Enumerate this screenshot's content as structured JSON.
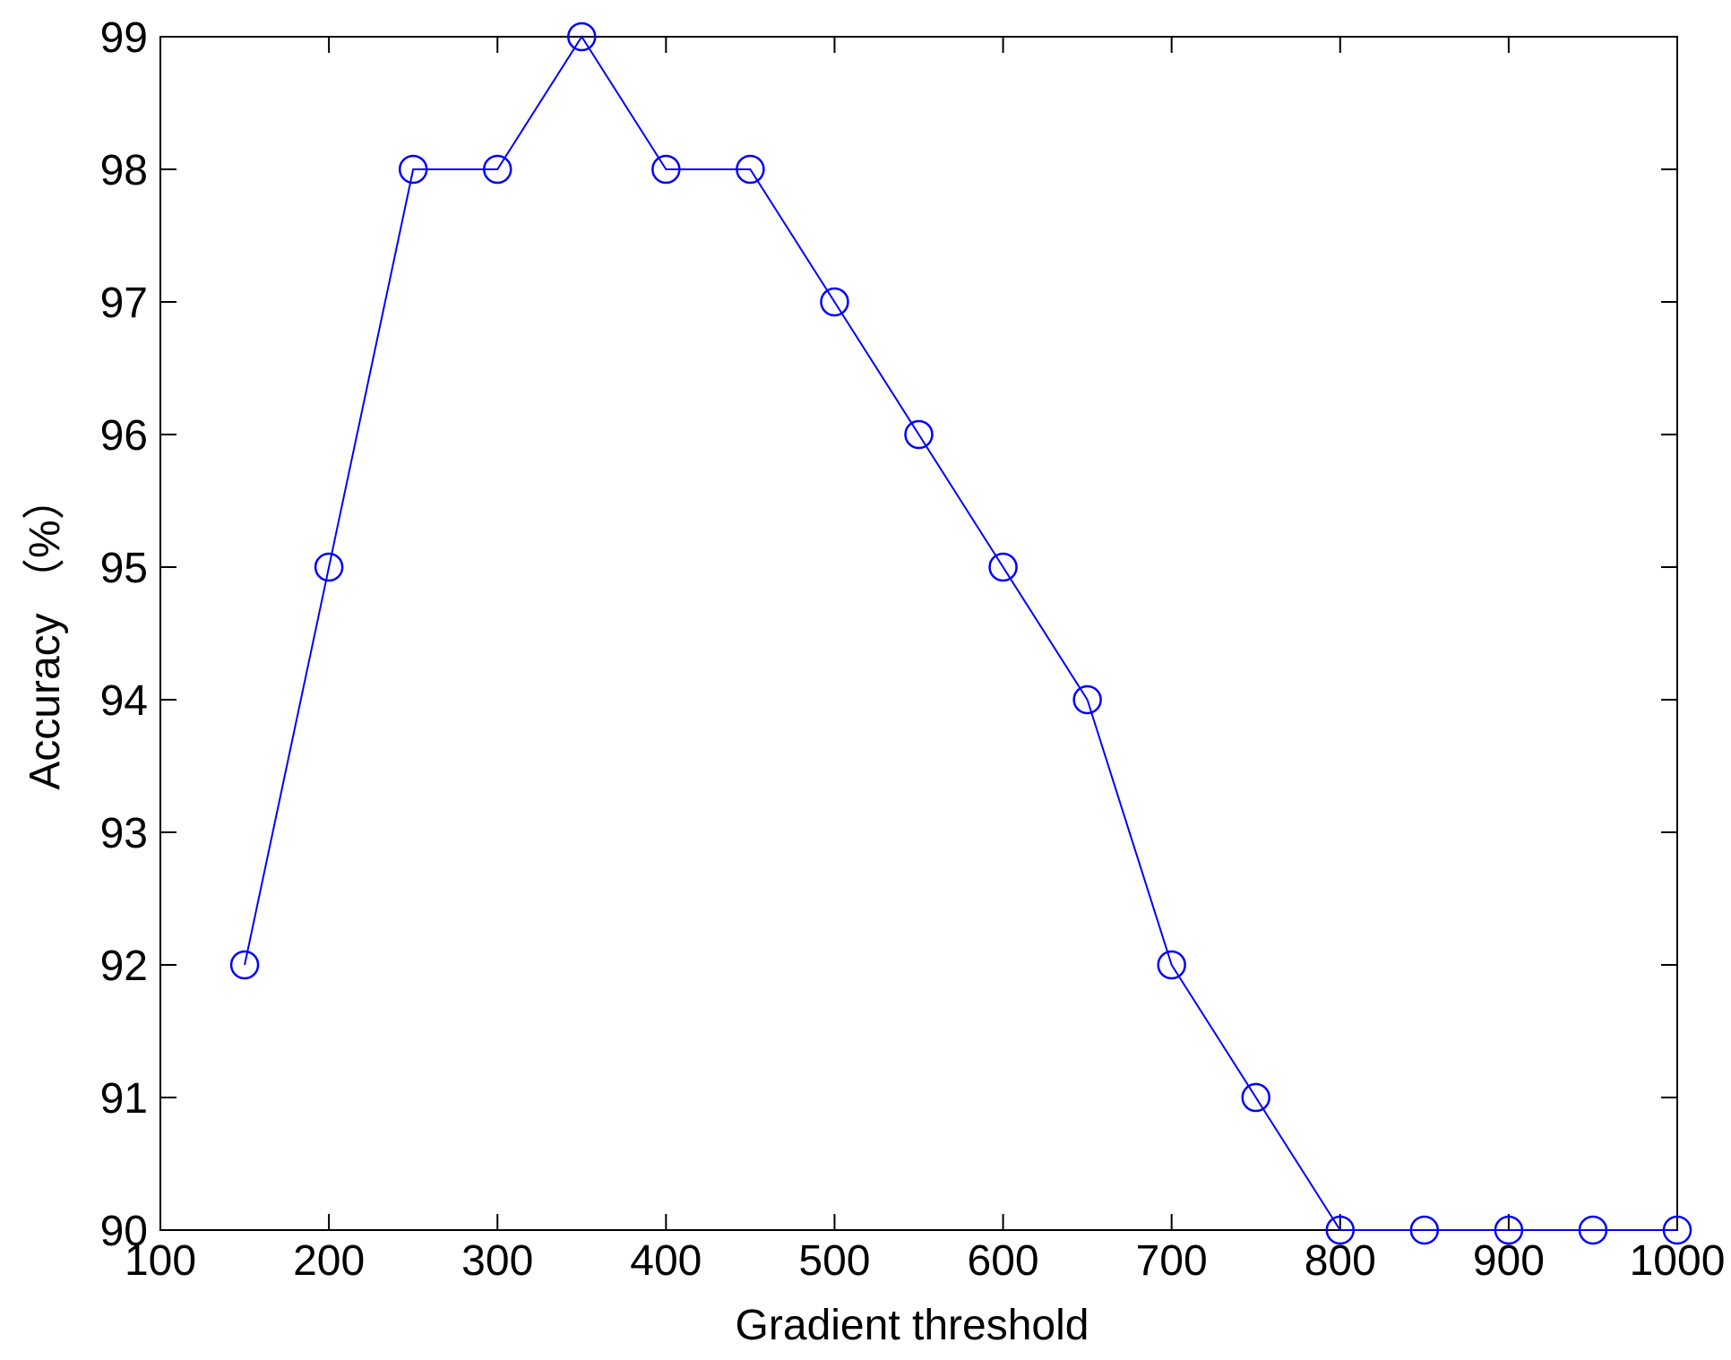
{
  "chart_data": {
    "type": "line",
    "xlabel": "Gradient threshold",
    "ylabel": "Accuracy （%）",
    "x": [
      150,
      200,
      250,
      300,
      350,
      400,
      450,
      500,
      550,
      600,
      650,
      700,
      750,
      800,
      850,
      900,
      950,
      1000
    ],
    "values": [
      92,
      95,
      98,
      98,
      99,
      98,
      98,
      97,
      96,
      95,
      94,
      92,
      91,
      90,
      90,
      90,
      90,
      90
    ],
    "color": "#0000ff",
    "marker": "circle",
    "xlim": [
      100,
      1000
    ],
    "xticks": [
      100,
      200,
      300,
      400,
      500,
      600,
      700,
      800,
      900,
      1000
    ],
    "ylim": [
      90,
      99
    ],
    "yticks": [
      90,
      91,
      92,
      93,
      94,
      95,
      96,
      97,
      98,
      99
    ],
    "grid": false
  }
}
